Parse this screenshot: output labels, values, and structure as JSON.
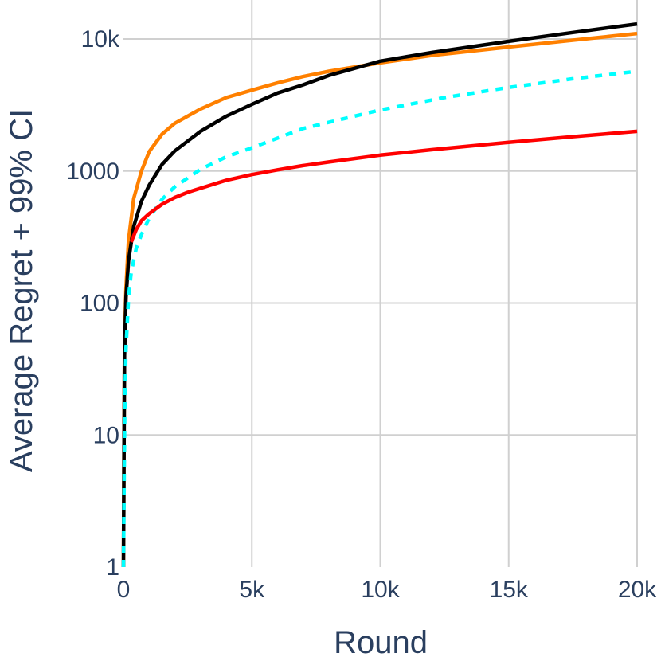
{
  "chart_data": {
    "type": "line",
    "title": "",
    "xlabel": "Round",
    "ylabel": "Average Regret + 99% CI",
    "xlim": [
      0,
      20000
    ],
    "ylim": [
      1,
      10000
    ],
    "yscale": "log",
    "grid": true,
    "legend": "none",
    "x_ticks": [
      {
        "value": 0,
        "label": "0"
      },
      {
        "value": 5000,
        "label": "5k"
      },
      {
        "value": 10000,
        "label": "10k"
      },
      {
        "value": 15000,
        "label": "15k"
      },
      {
        "value": 20000,
        "label": "20k"
      }
    ],
    "y_ticks": [
      {
        "value": 1,
        "label": "1"
      },
      {
        "value": 10,
        "label": "10"
      },
      {
        "value": 100,
        "label": "100"
      },
      {
        "value": 1000,
        "label": "1000"
      },
      {
        "value": 10000,
        "label": "10k"
      }
    ],
    "series": [
      {
        "color": "#ff8000",
        "dash": "solid",
        "x": [
          0,
          40,
          100,
          200,
          400,
          700,
          1000,
          1500,
          2000,
          3000,
          4000,
          5000,
          6000,
          7000,
          8000,
          10000,
          12000,
          15000,
          17500,
          20000
        ],
        "y": [
          1,
          50,
          130,
          300,
          620,
          1000,
          1400,
          1900,
          2300,
          2950,
          3600,
          4100,
          4650,
          5200,
          5700,
          6600,
          7500,
          8700,
          9800,
          11000
        ]
      },
      {
        "color": "#000000",
        "dash": "solid",
        "x": [
          0,
          40,
          100,
          200,
          400,
          700,
          1000,
          1500,
          2000,
          3000,
          4000,
          5000,
          6000,
          7000,
          8000,
          10000,
          12000,
          15000,
          17500,
          20000
        ],
        "y": [
          1,
          40,
          110,
          210,
          380,
          590,
          780,
          1120,
          1420,
          2000,
          2600,
          3200,
          3900,
          4500,
          5300,
          6800,
          7900,
          9600,
          11200,
          13000
        ]
      },
      {
        "color": "#00ffff",
        "dash": "dotted",
        "x": [
          0,
          50,
          100,
          200,
          300,
          500,
          700,
          1000,
          1500,
          2000,
          3000,
          4000,
          5000,
          7000,
          10000,
          12500,
          15000,
          17500,
          20000
        ],
        "y": [
          1,
          15,
          45,
          110,
          170,
          260,
          330,
          440,
          610,
          760,
          1030,
          1280,
          1500,
          2100,
          2900,
          3600,
          4300,
          5000,
          5700
        ]
      },
      {
        "color": "#ff0000",
        "dash": "solid",
        "x": [
          300,
          500,
          700,
          1000,
          1500,
          2000,
          2500,
          3000,
          4000,
          5000,
          6000,
          7000,
          8000,
          10000,
          12000,
          15000,
          17500,
          20000
        ],
        "y": [
          290,
          360,
          420,
          475,
          560,
          630,
          690,
          740,
          850,
          940,
          1020,
          1100,
          1170,
          1320,
          1450,
          1650,
          1820,
          2000
        ]
      }
    ]
  }
}
